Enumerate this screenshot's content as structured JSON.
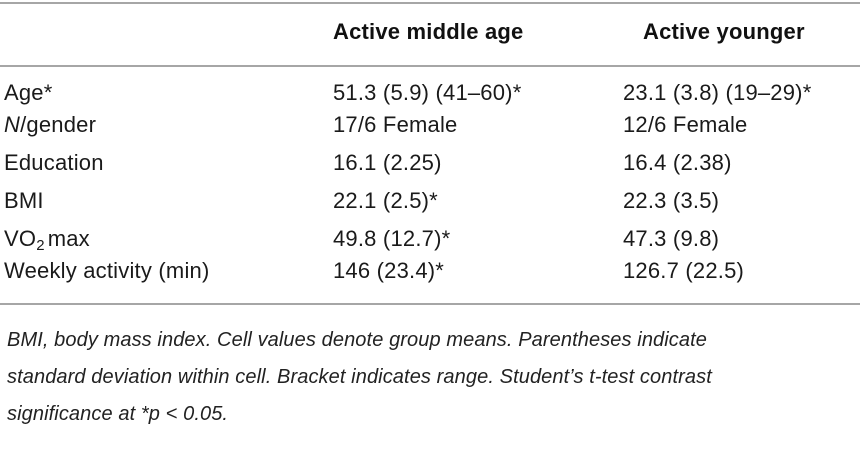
{
  "table": {
    "header": {
      "col_empty": "",
      "col_middle": "Active middle age",
      "col_younger": "Active younger"
    },
    "rows": [
      {
        "label": "Age*",
        "values": [
          "51.3 (5.9) (41–60)*",
          "23.1 (3.8) (19–29)*"
        ]
      },
      {
        "label_parts": {
          "italic": "N",
          "rest": "/gender"
        },
        "values": [
          "17/6 Female",
          "12/6 Female"
        ]
      },
      {
        "label": "Education",
        "values": [
          "16.1 (2.25)",
          "16.4 (2.38)"
        ]
      },
      {
        "label": "BMI",
        "values": [
          "22.1 (2.5)*",
          "22.3 (3.5)"
        ]
      },
      {
        "label_parts": {
          "pre": "VO",
          "sub": "2",
          "post": "max"
        },
        "values": [
          "49.8 (12.7)*",
          "47.3 (9.8)"
        ]
      },
      {
        "label": "Weekly activity (min)",
        "values": [
          "146 (23.4)*",
          "126.7 (22.5)"
        ]
      }
    ]
  },
  "footnote": {
    "lines": [
      "BMI, body mass index. Cell values denote group means. Parentheses indicate",
      "standard deviation within cell. Bracket indicates range. Student’s t-test contrast",
      "significance at *p < 0.05."
    ]
  },
  "colors": {
    "rule_gray": "#a6a6a6",
    "text": "#1a1a1a"
  }
}
